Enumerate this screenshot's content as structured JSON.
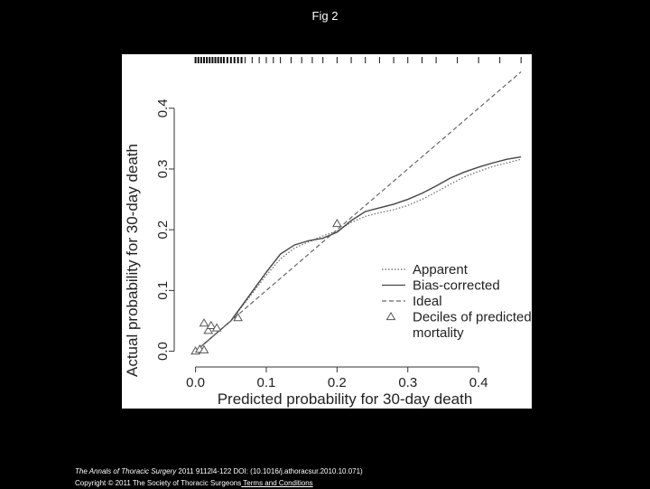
{
  "page": {
    "title": "Fig 2"
  },
  "citation": {
    "journal": "The Annals of Thoracic Surgery",
    "details": " 2011 9112l4-122 DOI: (10.1016/j.athoracsur.2010.10.071)",
    "copyright": "Copyright © 2011 The Society of Thoracic Surgeons",
    "link_text": " Terms and Conditions"
  },
  "chart_data": {
    "type": "line",
    "xlabel": "Predicted probability for 30-day death",
    "ylabel": "Actual probability for 30-day death",
    "xlim": [
      -0.025,
      0.47
    ],
    "ylim": [
      -0.02,
      0.48
    ],
    "x_ticks": [
      0.0,
      0.1,
      0.2,
      0.3,
      0.4
    ],
    "x_tick_labels": [
      "0.0",
      "0.1",
      "0.2",
      "0.3",
      "0.4"
    ],
    "y_ticks": [
      0.0,
      0.1,
      0.2,
      0.3,
      0.4
    ],
    "y_tick_labels": [
      "0.0",
      "0.1",
      "0.2",
      "0.3",
      "0.4"
    ],
    "grid": false,
    "legend_position": "bottom-right",
    "series": [
      {
        "name": "Apparent",
        "style": "dotted",
        "x": [
          0.0,
          0.02,
          0.05,
          0.08,
          0.1,
          0.12,
          0.14,
          0.16,
          0.18,
          0.2,
          0.22,
          0.24,
          0.26,
          0.28,
          0.3,
          0.32,
          0.34,
          0.36,
          0.38,
          0.4,
          0.42,
          0.44,
          0.46
        ],
        "y": [
          0.0,
          0.02,
          0.05,
          0.095,
          0.125,
          0.152,
          0.17,
          0.18,
          0.19,
          0.198,
          0.212,
          0.222,
          0.228,
          0.233,
          0.24,
          0.25,
          0.262,
          0.275,
          0.287,
          0.296,
          0.304,
          0.31,
          0.316
        ]
      },
      {
        "name": "Bias-corrected",
        "style": "solid",
        "x": [
          0.0,
          0.02,
          0.05,
          0.08,
          0.1,
          0.12,
          0.14,
          0.16,
          0.18,
          0.2,
          0.22,
          0.24,
          0.26,
          0.28,
          0.3,
          0.32,
          0.34,
          0.36,
          0.38,
          0.4,
          0.42,
          0.44,
          0.46
        ],
        "y": [
          0.0,
          0.02,
          0.05,
          0.098,
          0.13,
          0.16,
          0.175,
          0.182,
          0.186,
          0.196,
          0.215,
          0.23,
          0.236,
          0.242,
          0.25,
          0.26,
          0.272,
          0.285,
          0.295,
          0.303,
          0.31,
          0.316,
          0.32
        ]
      },
      {
        "name": "Ideal",
        "style": "dashed",
        "x": [
          0.0,
          0.46
        ],
        "y": [
          0.0,
          0.46
        ]
      },
      {
        "name": "Deciles of predicted mortality",
        "style": "triangle-markers",
        "x": [
          0.0,
          0.006,
          0.012,
          0.012,
          0.018,
          0.022,
          0.03,
          0.06,
          0.2
        ],
        "y": [
          0.0,
          0.003,
          0.002,
          0.046,
          0.034,
          0.042,
          0.038,
          0.055,
          0.21
        ]
      }
    ],
    "rug_x": [
      0.0,
      0.004,
      0.008,
      0.012,
      0.016,
      0.02,
      0.024,
      0.028,
      0.032,
      0.036,
      0.04,
      0.045,
      0.05,
      0.055,
      0.06,
      0.065,
      0.07,
      0.08,
      0.09,
      0.1,
      0.11,
      0.12,
      0.135,
      0.15,
      0.165,
      0.18,
      0.2,
      0.22,
      0.24,
      0.26,
      0.28,
      0.3,
      0.32,
      0.34,
      0.37,
      0.4,
      0.43,
      0.46
    ]
  }
}
